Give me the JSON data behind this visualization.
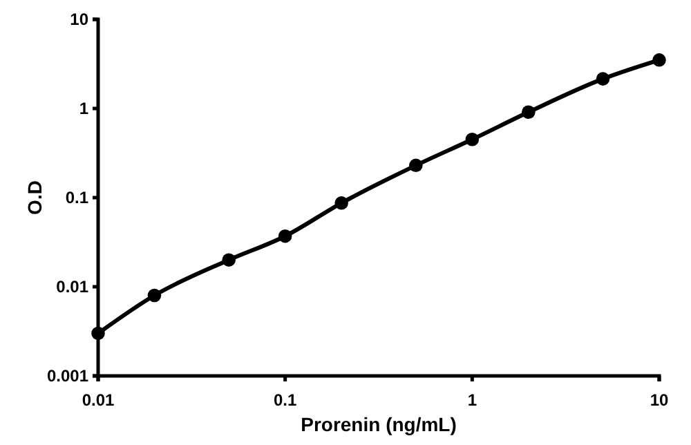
{
  "chart_data": {
    "type": "line",
    "xlabel": "Prorenin (ng/mL)",
    "ylabel": "O.D",
    "log": "xy",
    "x": [
      0.01,
      0.02,
      0.05,
      0.1,
      0.2,
      0.5,
      1,
      2,
      5,
      10
    ],
    "series": [
      {
        "color": "#000000",
        "values": [
          0.003,
          0.008,
          0.02,
          0.037,
          0.087,
          0.23,
          0.45,
          0.91,
          2.15,
          3.5
        ]
      }
    ],
    "xlim": [
      0.01,
      10
    ],
    "xticks": [
      0.01,
      0.1,
      1,
      10
    ],
    "ylim": [
      0.001,
      10
    ],
    "yticks": [
      0.001,
      0.01,
      0.1,
      1,
      10
    ],
    "marker": "circle",
    "line_style": "solid",
    "grid": false
  }
}
